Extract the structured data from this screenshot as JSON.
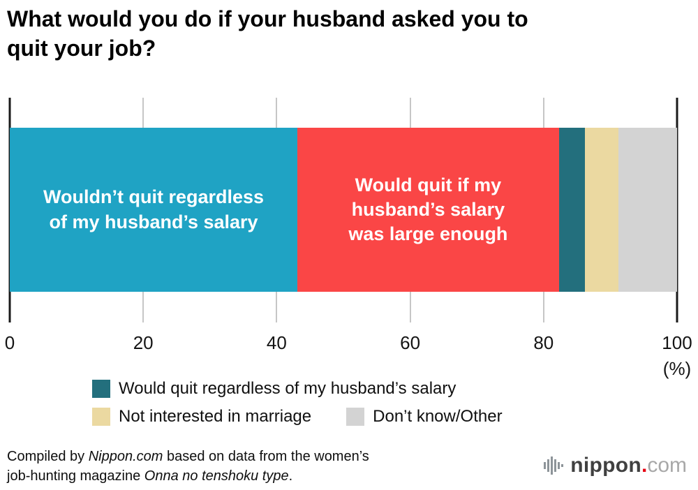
{
  "title": {
    "text": "What would you do if your husband asked you to quit your job?",
    "lines": [
      "What would you do if your husband asked you to",
      "quit your job?"
    ]
  },
  "chart_data": {
    "type": "bar",
    "subtype": "horizontal-stacked-percentage",
    "title": "What would you do if your husband asked you to quit your job?",
    "xlabel": "",
    "ylabel": "",
    "xlim": [
      0,
      100
    ],
    "x_ticks": [
      0,
      20,
      40,
      60,
      80,
      100
    ],
    "x_unit_label": "(%)",
    "grid": true,
    "legend_position": "bottom-left",
    "segments": [
      {
        "label": "Wouldn’t quit regardless of my husband’s salary",
        "bar_label_lines": [
          "Wouldn’t quit regardless",
          "of my husband’s salary"
        ],
        "value": 43.1,
        "color": "#1fa3c4",
        "text_color": "#ffffff"
      },
      {
        "label": "Would quit if my husband’s salary was large enough",
        "bar_label_lines": [
          "Would quit if my",
          "husband’s salary",
          "was large enough"
        ],
        "value": 39.2,
        "color": "#fa4646",
        "text_color": "#ffffff"
      },
      {
        "label": "Would quit regardless of my husband’s salary",
        "value": 3.9,
        "color": "#236f7d"
      },
      {
        "label": "Not interested in marriage",
        "value": 5.0,
        "color": "#ebd9a1"
      },
      {
        "label": "Don’t know/Other",
        "value": 8.8,
        "color": "#d3d3d3"
      }
    ],
    "legend": {
      "rows": [
        [
          {
            "label": "Would quit regardless of my husband’s salary",
            "color": "#236f7d"
          }
        ],
        [
          {
            "label": "Not interested in marriage",
            "color": "#ebd9a1"
          },
          {
            "label": "Don’t know/Other",
            "color": "#d3d3d3"
          }
        ]
      ]
    }
  },
  "footer": {
    "line1_prefix": "Compiled by ",
    "line1_italic": "Nippon.com",
    "line1_suffix": " based on data from the women’s",
    "line2_prefix": "job-hunting magazine ",
    "line2_italic": "Onna no tenshoku type",
    "line2_suffix": "."
  },
  "logo": {
    "name": "nippon",
    "dot": ".",
    "tld": "com"
  },
  "colors": {
    "gridline": "#c6c6c6",
    "axis_line": "#1a1a1a",
    "logo_dot_red": "#e60012"
  }
}
